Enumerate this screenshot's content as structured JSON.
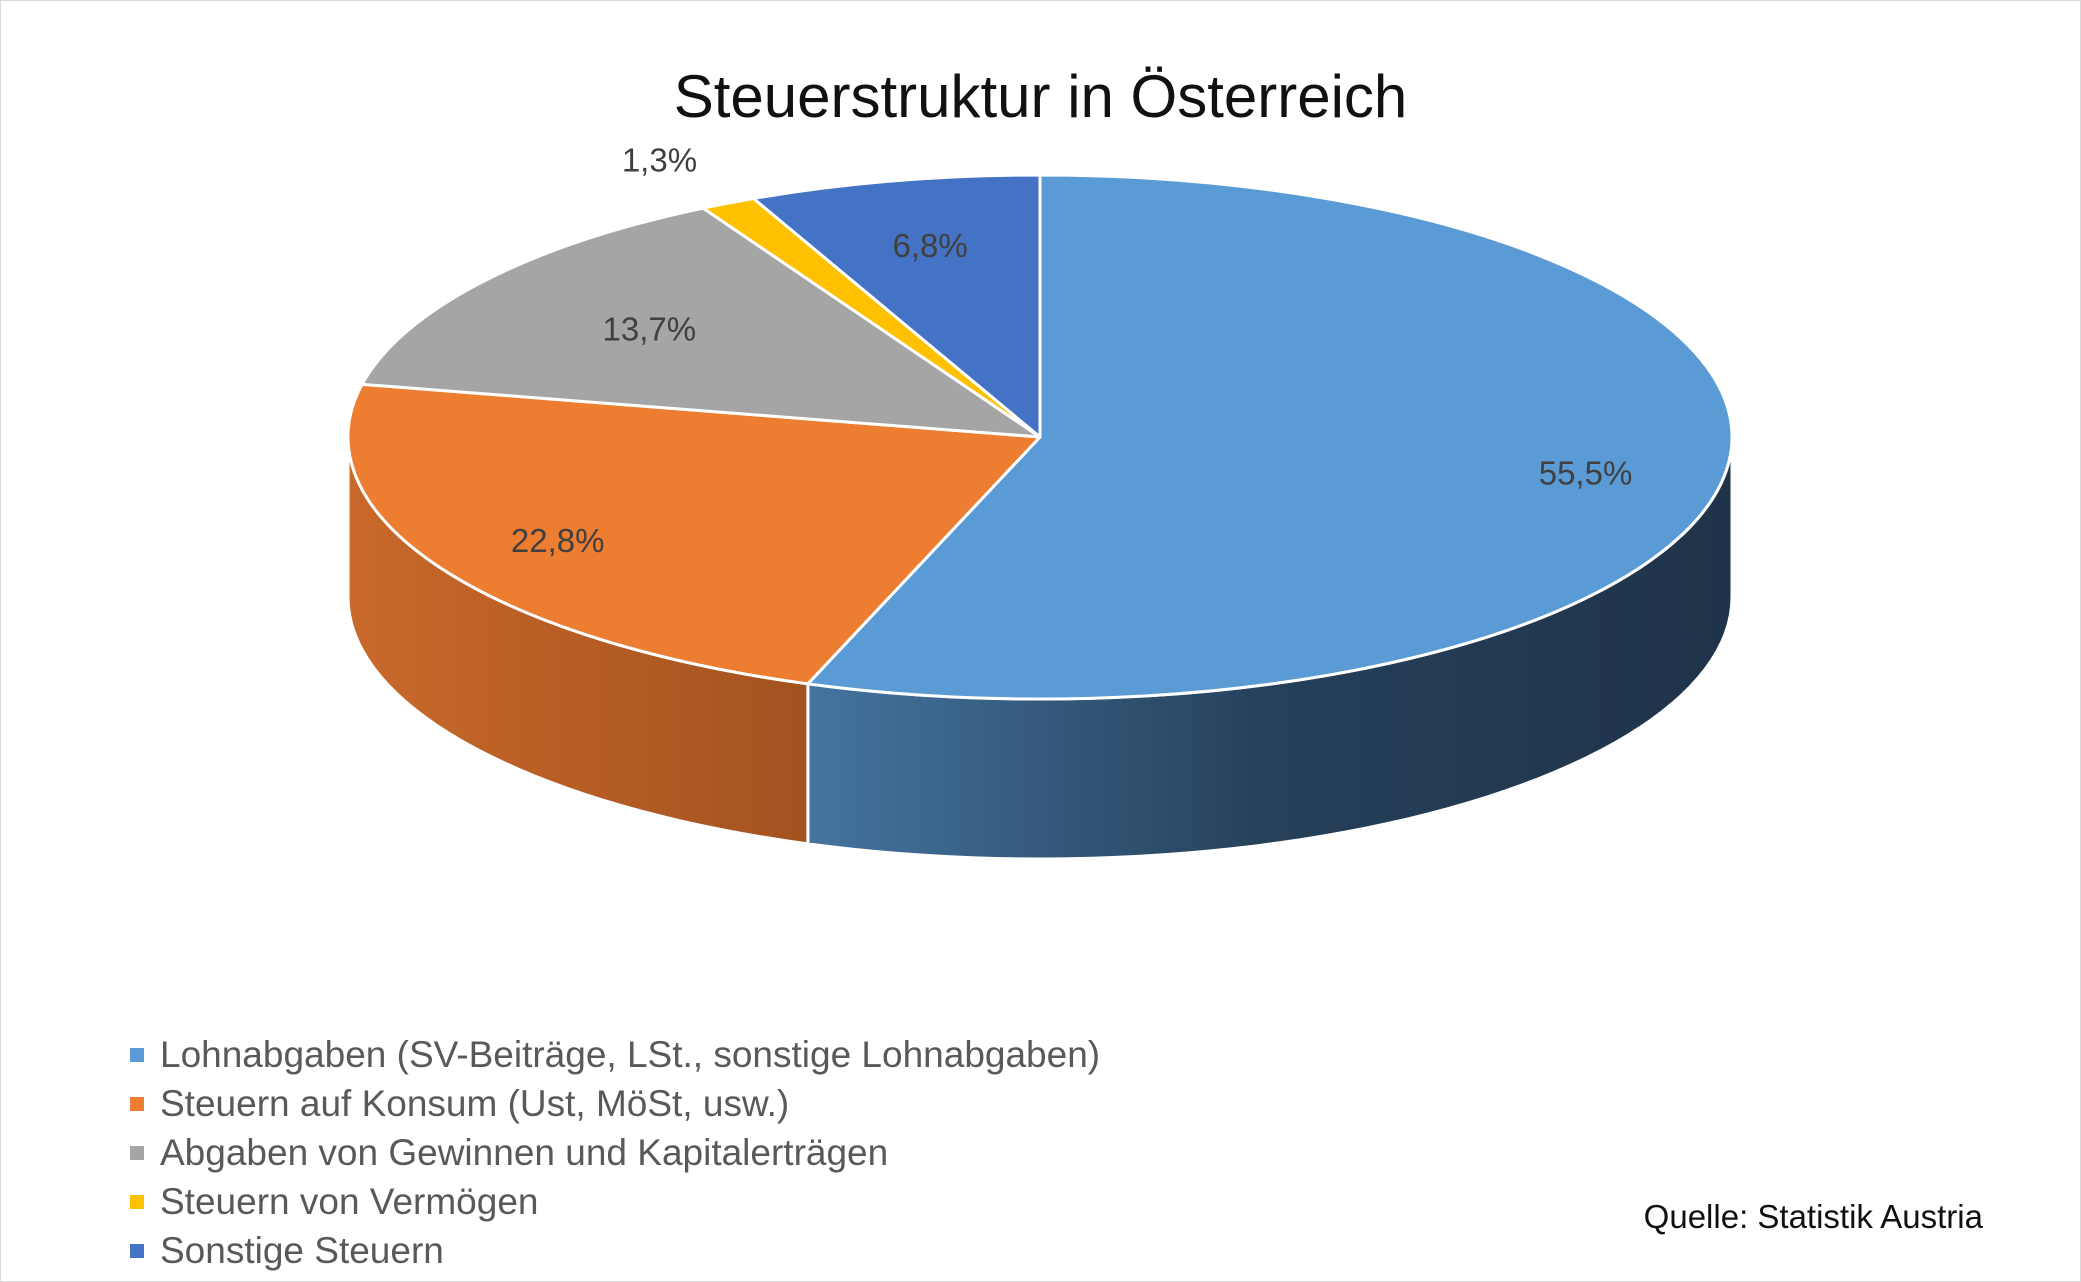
{
  "chart_data": {
    "type": "pie",
    "style": "3d",
    "title": "Steuerstruktur in Österreich",
    "source": "Quelle: Statistik Austria",
    "legend_position": "bottom-left",
    "series": [
      {
        "name": "Lohnabgaben (SV-Beiträge, LSt., sonstige Lohnabgaben)",
        "value": 55.5,
        "label": "55,5%",
        "color": "#5b9bd5",
        "side_color": "#2e4f6d"
      },
      {
        "name": "Steuern auf Konsum (Ust, MöSt, usw.)",
        "value": 22.8,
        "label": "22,8%",
        "color": "#ed7d31",
        "side_color": "#b25d24"
      },
      {
        "name": "Abgaben von Gewinnen und Kapitalerträgen",
        "value": 13.7,
        "label": "13,7%",
        "color": "#a5a5a5",
        "side_color": "#7c7c7c"
      },
      {
        "name": "Steuern von Vermögen",
        "value": 1.3,
        "label": "1,3%",
        "color": "#ffc000",
        "side_color": "#bf9000"
      },
      {
        "name": "Sonstige Steuern",
        "value": 6.8,
        "label": "6,8%",
        "color": "#4472c4",
        "side_color": "#2f5597"
      }
    ]
  }
}
